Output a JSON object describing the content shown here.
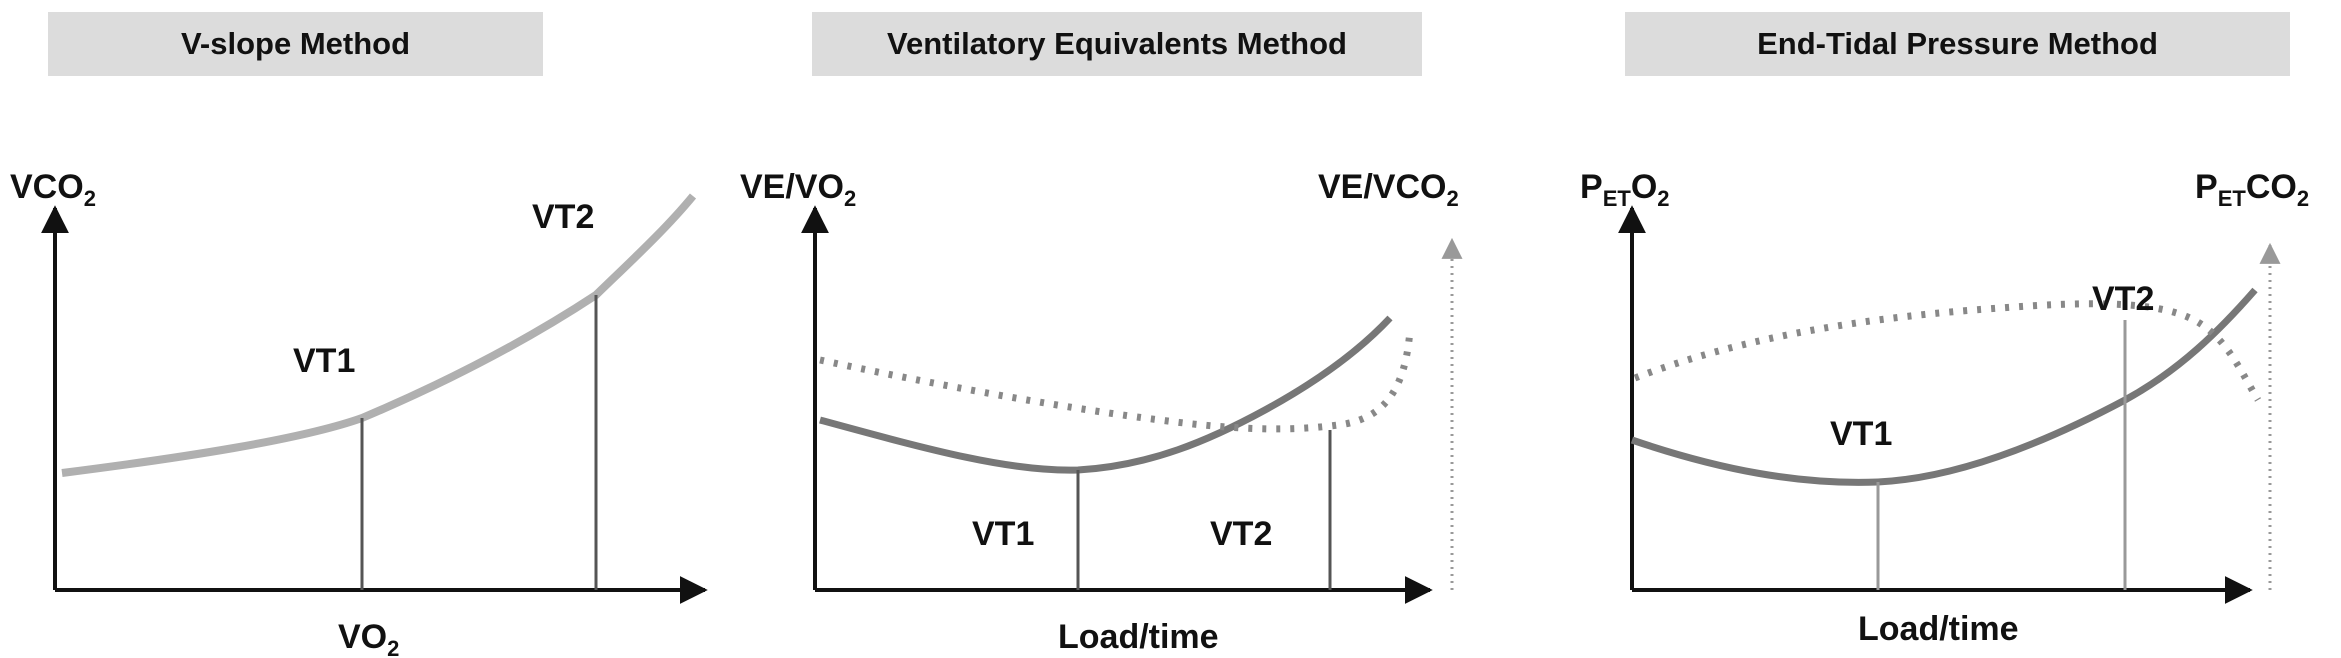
{
  "panels": [
    {
      "title": "V-slope Method",
      "y_axis": {
        "base": "VCO",
        "sub": "2",
        "tail": ""
      },
      "x_axis": {
        "base": "VO",
        "sub": "2"
      },
      "markers": [
        "VT1",
        "VT2"
      ]
    },
    {
      "title": "Ventilatory Equivalents Method",
      "y_axis_left": {
        "base": "VE/VO",
        "sub": "2"
      },
      "y_axis_right": {
        "base": "VE/VCO",
        "sub": "2"
      },
      "x_axis": "Load/time",
      "markers": [
        "VT1",
        "VT2"
      ]
    },
    {
      "title": "End-Tidal Pressure Method",
      "y_axis_left": {
        "pre": "P",
        "sub": "ET",
        "post": "O",
        "sub2": "2"
      },
      "y_axis_right": {
        "pre": "P",
        "sub": "ET",
        "post": "CO",
        "sub2": "2"
      },
      "x_axis": "Load/time",
      "markers": [
        "VT1",
        "VT2"
      ]
    }
  ],
  "colors": {
    "axis": "#111111",
    "curve": "#777777",
    "curve_light": "#b0b0b0",
    "dotted": "#888888",
    "banner": "#dcdcdc"
  }
}
